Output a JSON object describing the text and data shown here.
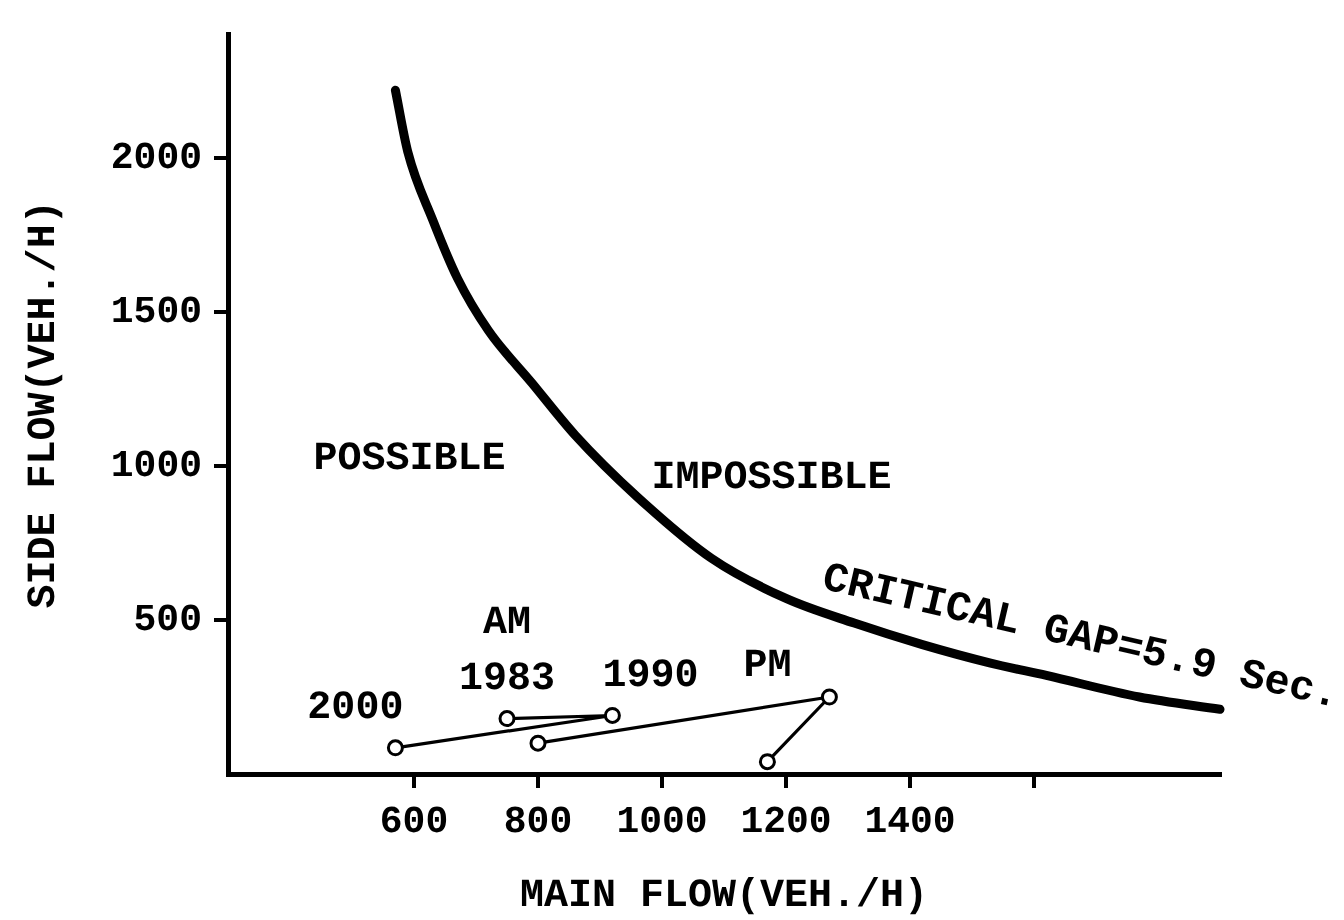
{
  "chart_data": {
    "type": "line",
    "xlabel": "MAIN FLOW(VEH./H)",
    "ylabel": "SIDE FLOW(VEH./H)",
    "xlim": [
      300,
      1900
    ],
    "xticks": [
      600,
      800,
      1000,
      1200,
      1400,
      {
        "value": 1600,
        "label": null
      }
    ],
    "ylim": [
      0,
      2400
    ],
    "yticks": [
      500,
      1000,
      1500,
      2000
    ],
    "grid": false,
    "legend": false,
    "series": [
      {
        "name": "CRITICAL GAP=5.9 Sec.",
        "type": "line",
        "color": "#000000",
        "marker": "none",
        "x": [
          570,
          590,
          630,
          670,
          720,
          790,
          860,
          960,
          1080,
          1200,
          1310,
          1420,
          1530,
          1620,
          1770,
          1900
        ],
        "values": [
          2220,
          2020,
          1800,
          1610,
          1440,
          1270,
          1100,
          900,
          700,
          570,
          490,
          420,
          360,
          320,
          250,
          210
        ]
      },
      {
        "name": "AM",
        "type": "line",
        "color": "#000000",
        "marker": "circle",
        "x": [
          750,
          920,
          570
        ],
        "values": [
          180,
          190,
          85
        ]
      },
      {
        "name": "PM",
        "type": "line",
        "color": "#000000",
        "marker": "circle",
        "x": [
          1170,
          1270,
          800
        ],
        "values": [
          40,
          250,
          100
        ]
      }
    ],
    "annotations": [
      "POSSIBLE",
      "IMPOSSIBLE",
      {
        "text": "1983",
        "x": 750,
        "y": 180
      },
      {
        "text": "1990",
        "x": 920,
        "y": 190
      },
      {
        "text": "2000",
        "x": 570,
        "y": 85
      }
    ]
  }
}
